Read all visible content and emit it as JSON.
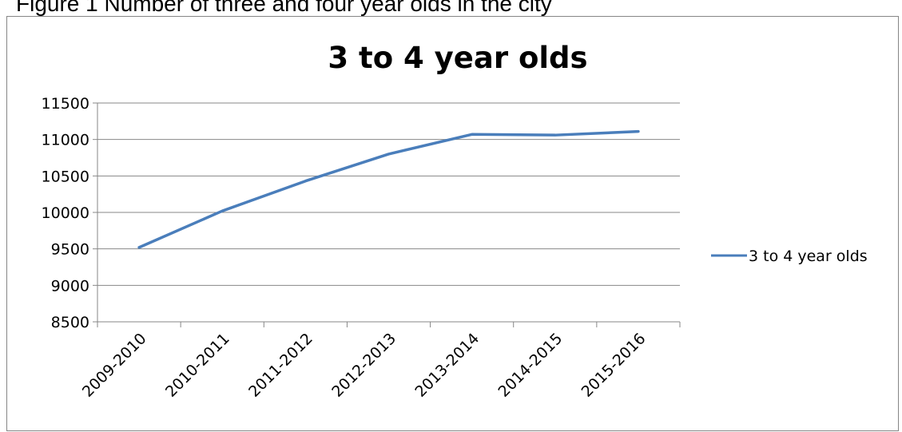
{
  "caption": "Figure 1 Number of three and four year olds in the city",
  "chart_data": {
    "type": "line",
    "title": "3 to 4 year olds",
    "xlabel": "",
    "ylabel": "",
    "categories": [
      "2009-2010",
      "2010-2011",
      "2011-2012",
      "2012-2013",
      "2013-2014",
      "2014-2015",
      "2015-2016"
    ],
    "series": [
      {
        "name": "3 to 4 year olds",
        "values": [
          9520,
          10020,
          10430,
          10800,
          11070,
          11060,
          11110
        ],
        "color": "#4a7ebb"
      }
    ],
    "ylim": [
      8500,
      11500
    ],
    "yticks": [
      8500,
      9000,
      9500,
      10000,
      10500,
      11000,
      11500
    ],
    "grid": true,
    "legend": "right"
  }
}
